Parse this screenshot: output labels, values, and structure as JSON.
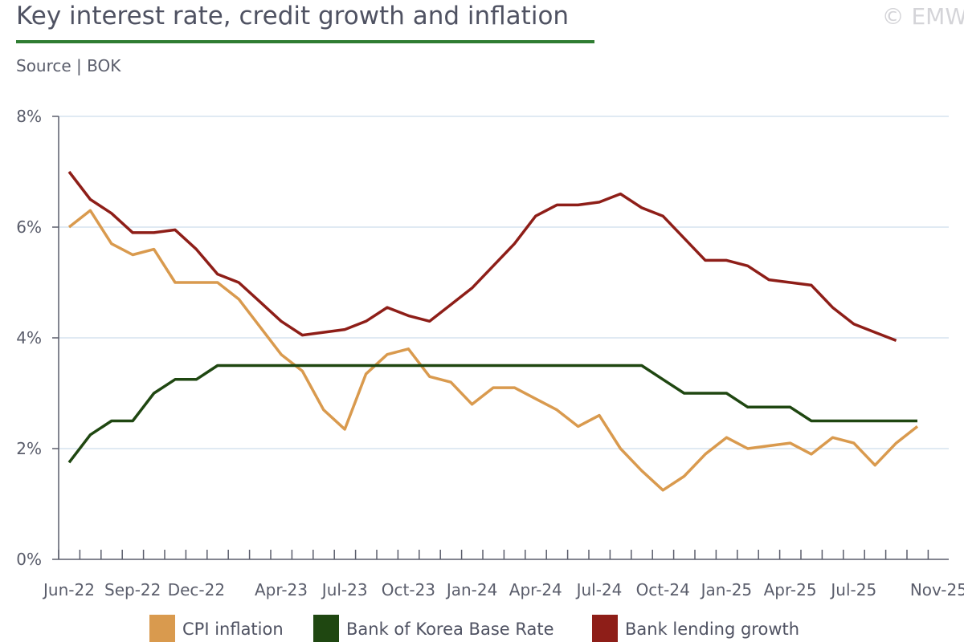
{
  "header": {
    "title": "Key interest rate, credit growth and inflation",
    "subtitle": "Source | BOK",
    "watermark": "© EMW"
  },
  "colors": {
    "title_rule": "#2f7d32",
    "grid": "#d5e3ef",
    "axis": "#5a5d6b"
  },
  "chart_data": {
    "type": "line",
    "title": "Key interest rate, credit growth and inflation",
    "xlabel": "",
    "ylabel": "",
    "ylim": [
      0,
      8
    ],
    "yticks": [
      "0%",
      "2%",
      "4%",
      "6%",
      "8%"
    ],
    "grid": true,
    "legend_position": "bottom",
    "x": [
      "Jun-22",
      "Jul-22",
      "Aug-22",
      "Sep-22",
      "Oct-22",
      "Nov-22",
      "Dec-22",
      "Jan-23",
      "Feb-23",
      "Mar-23",
      "Apr-23",
      "May-23",
      "Jun-23",
      "Jul-23",
      "Aug-23",
      "Sep-23",
      "Oct-23",
      "Nov-23",
      "Dec-23",
      "Jan-24",
      "Feb-24",
      "Mar-24",
      "Apr-24",
      "May-24",
      "Jun-24",
      "Jul-24",
      "Aug-24",
      "Sep-24",
      "Oct-24",
      "Nov-24",
      "Dec-24",
      "Jan-25",
      "Feb-25",
      "Mar-25",
      "Apr-25",
      "May-25",
      "Jun-25",
      "Jul-25",
      "Aug-25",
      "Sep-25",
      "Oct-25",
      "Nov-25"
    ],
    "x_tick_labels": [
      "Jun-22",
      "Sep-22",
      "Dec-22",
      "Apr-23",
      "Jul-23",
      "Oct-23",
      "Jan-24",
      "Apr-24",
      "Jul-24",
      "Oct-24",
      "Jan-25",
      "Apr-25",
      "Jul-25",
      "Nov-25"
    ],
    "series": [
      {
        "name": "CPI inflation",
        "color": "#d99a4e",
        "values": [
          6.0,
          6.3,
          5.7,
          5.5,
          5.6,
          5.0,
          5.0,
          5.0,
          4.7,
          4.2,
          3.7,
          3.4,
          2.7,
          2.35,
          3.35,
          3.7,
          3.8,
          3.3,
          3.2,
          2.8,
          3.1,
          3.1,
          2.9,
          2.7,
          2.4,
          2.6,
          2.0,
          1.6,
          1.25,
          1.5,
          1.9,
          2.2,
          2.0,
          2.05,
          2.1,
          1.9,
          2.2,
          2.1,
          1.7,
          2.1,
          2.4,
          null
        ]
      },
      {
        "name": "Bank of Korea Base Rate",
        "color": "#1f4711",
        "values": [
          1.75,
          2.25,
          2.5,
          2.5,
          3.0,
          3.25,
          3.25,
          3.5,
          3.5,
          3.5,
          3.5,
          3.5,
          3.5,
          3.5,
          3.5,
          3.5,
          3.5,
          3.5,
          3.5,
          3.5,
          3.5,
          3.5,
          3.5,
          3.5,
          3.5,
          3.5,
          3.5,
          3.5,
          3.25,
          3.0,
          3.0,
          3.0,
          2.75,
          2.75,
          2.75,
          2.5,
          2.5,
          2.5,
          2.5,
          2.5,
          2.5,
          null
        ]
      },
      {
        "name": "Bank lending growth",
        "color": "#8e1e18",
        "values": [
          7.0,
          6.5,
          6.25,
          5.9,
          5.9,
          5.95,
          5.6,
          5.15,
          5.0,
          4.65,
          4.3,
          4.05,
          4.1,
          4.15,
          4.3,
          4.55,
          4.4,
          4.3,
          4.6,
          4.9,
          5.3,
          5.7,
          6.2,
          6.4,
          6.4,
          6.45,
          6.6,
          6.35,
          6.2,
          5.8,
          5.4,
          5.4,
          5.3,
          5.05,
          5.0,
          4.95,
          4.55,
          4.25,
          4.1,
          3.95,
          null,
          null
        ]
      }
    ]
  }
}
